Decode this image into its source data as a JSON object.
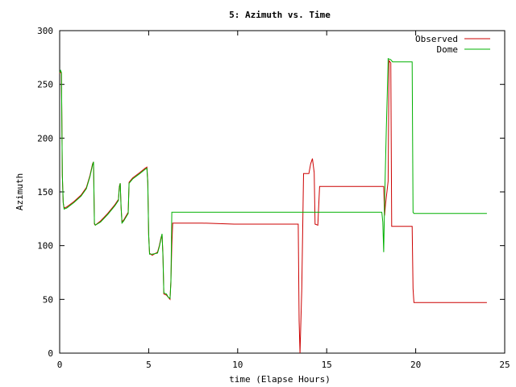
{
  "chart_data": {
    "type": "line",
    "title": "5: Azimuth vs. Time",
    "xlabel": "time (Elapse Hours)",
    "ylabel": "Azimuth",
    "xlim": [
      0,
      25
    ],
    "ylim": [
      0,
      300
    ],
    "xticks": [
      0,
      5,
      10,
      15,
      20,
      25
    ],
    "yticks": [
      0,
      50,
      100,
      150,
      200,
      250,
      300
    ],
    "grid": false,
    "legend_position": "top-right",
    "series": [
      {
        "name": "Observed",
        "color": "#cc0000",
        "points": [
          [
            0.0,
            260
          ],
          [
            0.05,
            262
          ],
          [
            0.1,
            260
          ],
          [
            0.15,
            165
          ],
          [
            0.2,
            140
          ],
          [
            0.25,
            135
          ],
          [
            0.4,
            136
          ],
          [
            0.8,
            141
          ],
          [
            1.2,
            147
          ],
          [
            1.5,
            154
          ],
          [
            1.7,
            165
          ],
          [
            1.85,
            176
          ],
          [
            1.9,
            178
          ],
          [
            1.95,
            120
          ],
          [
            2.0,
            119
          ],
          [
            2.3,
            123
          ],
          [
            2.7,
            130
          ],
          [
            3.1,
            138
          ],
          [
            3.3,
            143
          ],
          [
            3.35,
            155
          ],
          [
            3.4,
            158
          ],
          [
            3.45,
            135
          ],
          [
            3.5,
            122
          ],
          [
            3.6,
            124
          ],
          [
            3.85,
            131
          ],
          [
            3.9,
            159
          ],
          [
            4.1,
            163
          ],
          [
            4.5,
            168
          ],
          [
            4.8,
            172
          ],
          [
            4.9,
            173
          ],
          [
            4.95,
            160
          ],
          [
            5.0,
            110
          ],
          [
            5.05,
            93
          ],
          [
            5.2,
            91
          ],
          [
            5.5,
            94
          ],
          [
            5.6,
            100
          ],
          [
            5.7,
            108
          ],
          [
            5.75,
            110
          ],
          [
            5.8,
            92
          ],
          [
            5.85,
            55
          ],
          [
            6.0,
            54
          ],
          [
            6.1,
            52
          ],
          [
            6.2,
            50
          ],
          [
            6.25,
            68
          ],
          [
            6.3,
            100
          ],
          [
            6.35,
            121
          ],
          [
            8.0,
            121
          ],
          [
            9.8,
            120
          ],
          [
            12.0,
            120
          ],
          [
            13.0,
            120
          ],
          [
            13.4,
            120
          ],
          [
            13.45,
            30
          ],
          [
            13.5,
            0
          ],
          [
            13.6,
            60
          ],
          [
            13.7,
            167
          ],
          [
            14.0,
            167
          ],
          [
            14.1,
            176
          ],
          [
            14.2,
            181
          ],
          [
            14.3,
            168
          ],
          [
            14.35,
            120
          ],
          [
            14.5,
            119
          ],
          [
            14.6,
            155
          ],
          [
            16.0,
            155
          ],
          [
            17.5,
            155
          ],
          [
            18.2,
            155
          ],
          [
            18.25,
            128
          ],
          [
            18.3,
            138
          ],
          [
            18.45,
            160
          ],
          [
            18.5,
            272
          ],
          [
            18.6,
            270
          ],
          [
            18.65,
            118
          ],
          [
            19.0,
            118
          ],
          [
            19.8,
            118
          ],
          [
            19.85,
            60
          ],
          [
            19.9,
            47
          ],
          [
            22.0,
            47
          ],
          [
            24.0,
            47
          ]
        ]
      },
      {
        "name": "Dome",
        "color": "#00b000",
        "points": [
          [
            0.0,
            261
          ],
          [
            0.05,
            263
          ],
          [
            0.1,
            261
          ],
          [
            0.15,
            166
          ],
          [
            0.2,
            140
          ],
          [
            0.25,
            134
          ],
          [
            0.4,
            135
          ],
          [
            0.8,
            140
          ],
          [
            1.2,
            146
          ],
          [
            1.5,
            153
          ],
          [
            1.7,
            164
          ],
          [
            1.85,
            175
          ],
          [
            1.9,
            178
          ],
          [
            1.95,
            121
          ],
          [
            2.0,
            119
          ],
          [
            2.3,
            122
          ],
          [
            2.7,
            129
          ],
          [
            3.1,
            137
          ],
          [
            3.3,
            142
          ],
          [
            3.35,
            154
          ],
          [
            3.4,
            158
          ],
          [
            3.45,
            136
          ],
          [
            3.5,
            121
          ],
          [
            3.6,
            123
          ],
          [
            3.85,
            130
          ],
          [
            3.9,
            158
          ],
          [
            4.1,
            162
          ],
          [
            4.5,
            167
          ],
          [
            4.8,
            171
          ],
          [
            4.9,
            172
          ],
          [
            4.95,
            158
          ],
          [
            5.0,
            110
          ],
          [
            5.05,
            92
          ],
          [
            5.2,
            92
          ],
          [
            5.5,
            93
          ],
          [
            5.6,
            99
          ],
          [
            5.7,
            107
          ],
          [
            5.75,
            111
          ],
          [
            5.8,
            90
          ],
          [
            5.85,
            56
          ],
          [
            6.0,
            55
          ],
          [
            6.1,
            52
          ],
          [
            6.2,
            51
          ],
          [
            6.25,
            66
          ],
          [
            6.3,
            131
          ],
          [
            10.0,
            131
          ],
          [
            14.0,
            131
          ],
          [
            18.0,
            131
          ],
          [
            18.1,
            131
          ],
          [
            18.15,
            122
          ],
          [
            18.2,
            94
          ],
          [
            18.25,
            140
          ],
          [
            18.35,
            210
          ],
          [
            18.4,
            240
          ],
          [
            18.45,
            274
          ],
          [
            18.6,
            273
          ],
          [
            18.7,
            271
          ],
          [
            19.5,
            271
          ],
          [
            19.8,
            271
          ],
          [
            19.85,
            131
          ],
          [
            19.9,
            130
          ],
          [
            22.0,
            130
          ],
          [
            24.0,
            130
          ]
        ]
      }
    ]
  }
}
